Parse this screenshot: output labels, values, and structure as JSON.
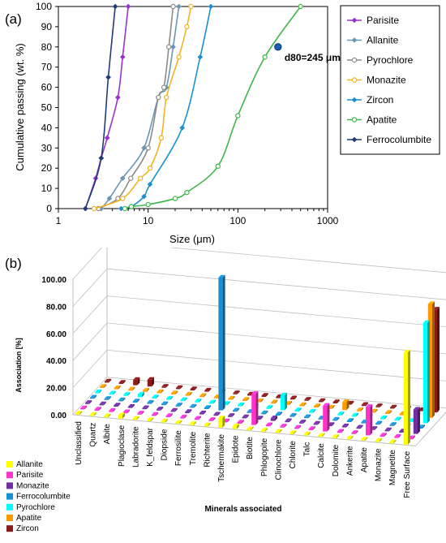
{
  "chart_data": [
    {
      "type": "line",
      "panel_label": "(a)",
      "xlabel": "Size (μm)",
      "ylabel": "Cumulative passing (wt. %)",
      "xscale": "log",
      "xlim": [
        1,
        1000
      ],
      "ylim": [
        0,
        100
      ],
      "x_ticks": [
        "1",
        "10",
        "100",
        "1000"
      ],
      "y_ticks": [
        "0",
        "10",
        "20",
        "30",
        "40",
        "50",
        "60",
        "70",
        "80",
        "90",
        "100"
      ],
      "grid": false,
      "legend": "right",
      "annotation": {
        "text": "d80=245 μm",
        "x": 280,
        "y": 80
      },
      "series": [
        {
          "name": "Parisite",
          "color": "#9933cc",
          "marker": "diamond",
          "points": [
            [
              2.0,
              0
            ],
            [
              2.6,
              15
            ],
            [
              3.0,
              25
            ],
            [
              3.5,
              35
            ],
            [
              4.6,
              55
            ],
            [
              5.2,
              75
            ],
            [
              6.0,
              100
            ]
          ]
        },
        {
          "name": "Allanite",
          "color": "#6a96b6",
          "marker": "diamond",
          "points": [
            [
              3.0,
              0
            ],
            [
              3.7,
              5
            ],
            [
              5.2,
              15
            ],
            [
              9.0,
              30
            ],
            [
              13.0,
              55
            ],
            [
              16.0,
              60
            ],
            [
              19.0,
              80
            ],
            [
              22.0,
              100
            ]
          ]
        },
        {
          "name": "Pyrochlore",
          "color": "#8c8c8c",
          "marker": "circle",
          "points": [
            [
              2.8,
              0
            ],
            [
              4.6,
              5
            ],
            [
              6.4,
              15
            ],
            [
              10.0,
              30
            ],
            [
              13.0,
              55
            ],
            [
              15.0,
              60
            ],
            [
              17.0,
              80
            ],
            [
              19.0,
              100
            ]
          ]
        },
        {
          "name": "Monazite",
          "color": "#f2b321",
          "marker": "circle",
          "points": [
            [
              2.5,
              0
            ],
            [
              5.2,
              5
            ],
            [
              8.2,
              15
            ],
            [
              10.5,
              20
            ],
            [
              14.0,
              35
            ],
            [
              16.0,
              55
            ],
            [
              22.0,
              75
            ],
            [
              27.0,
              90
            ],
            [
              30.0,
              100
            ]
          ]
        },
        {
          "name": "Zircon",
          "color": "#1a8fd1",
          "marker": "diamond",
          "points": [
            [
              5.0,
              0
            ],
            [
              6.5,
              1
            ],
            [
              9.0,
              6
            ],
            [
              10.5,
              12
            ],
            [
              24.0,
              40
            ],
            [
              38.0,
              75
            ],
            [
              50.0,
              100
            ]
          ]
        },
        {
          "name": "Apatite",
          "color": "#3fb54a",
          "marker": "circle",
          "points": [
            [
              5.5,
              0
            ],
            [
              6.5,
              1
            ],
            [
              10.0,
              2
            ],
            [
              20.0,
              5
            ],
            [
              27.0,
              8
            ],
            [
              60.0,
              21
            ],
            [
              100.0,
              46
            ],
            [
              200.0,
              75
            ],
            [
              500.0,
              100
            ]
          ]
        },
        {
          "name": "Ferrocolumbite",
          "color": "#1f3c78",
          "marker": "diamond",
          "points": [
            [
              2.0,
              0
            ],
            [
              3.0,
              25
            ],
            [
              3.6,
              65
            ],
            [
              4.3,
              100
            ]
          ]
        }
      ]
    },
    {
      "type": "bar3d",
      "panel_label": "(b)",
      "ylabel": "Association [%]",
      "xlabel": "Minerals associated",
      "ylim": [
        0,
        100
      ],
      "y_ticks": [
        "0.00",
        "20.00",
        "40.00",
        "60.00",
        "80.00",
        "100.00"
      ],
      "categories": [
        "Unclassified",
        "Quartz",
        "Albite",
        "Plagioclase",
        "Labradorite",
        "K_feldspar",
        "Diopside",
        "Ferrosilite",
        "Tremolite",
        "Richterite",
        "Tschermakite",
        "Epidote",
        "Biotite",
        "Phlogopite",
        "Clinochlore",
        "Chlorite",
        "Talc",
        "Calcite",
        "Dolomite",
        "Ankerite",
        "Apatite",
        "Monazite",
        "Magnetite",
        "Free Surface"
      ],
      "series": [
        {
          "name": "Allanite",
          "color": "#ffff00",
          "values": [
            0.3,
            0.3,
            0.3,
            2.5,
            0.3,
            0.3,
            0.3,
            0.3,
            0.3,
            0.3,
            7.0,
            2.0,
            0.3,
            0.3,
            0.3,
            0.3,
            0.3,
            0.3,
            0.3,
            0.3,
            0.3,
            0.3,
            0.3,
            68.0
          ]
        },
        {
          "name": "Parisite",
          "color": "#ff33cc",
          "values": [
            0.3,
            0.3,
            0.3,
            0.3,
            0.3,
            0.3,
            0.3,
            0.3,
            0.3,
            0.3,
            0.3,
            0.3,
            23.0,
            0.3,
            0.3,
            0.3,
            0.3,
            19.0,
            0.3,
            0.3,
            21.0,
            0.3,
            0.3,
            0.3
          ]
        },
        {
          "name": "Monazite",
          "color": "#7030a0",
          "values": [
            0.3,
            0.3,
            0.3,
            0.3,
            0.3,
            0.3,
            0.3,
            0.3,
            0.3,
            0.3,
            0.3,
            0.3,
            0.3,
            2.0,
            0.3,
            0.3,
            0.3,
            0.3,
            0.3,
            0.3,
            0.3,
            0.3,
            0.3,
            18.0
          ]
        },
        {
          "name": "Ferrocolumbite",
          "color": "#1a8fd1",
          "values": [
            0.3,
            0.3,
            0.3,
            0.3,
            0.3,
            0.3,
            0.3,
            0.3,
            0.3,
            98.0,
            0.3,
            0.3,
            0.3,
            0.3,
            0.3,
            0.3,
            0.3,
            0.3,
            0.3,
            0.3,
            0.3,
            0.3,
            0.3,
            0.3
          ]
        },
        {
          "name": "Pyrochlore",
          "color": "#00ffff",
          "values": [
            0.3,
            0.3,
            0.3,
            2.0,
            0.3,
            0.3,
            0.3,
            0.3,
            0.3,
            0.3,
            0.3,
            0.3,
            0.3,
            11.0,
            0.3,
            0.3,
            0.3,
            0.3,
            0.3,
            0.3,
            0.3,
            0.3,
            0.3,
            74.0
          ]
        },
        {
          "name": "Apatite",
          "color": "#ff9900",
          "values": [
            0.3,
            0.3,
            0.3,
            0.3,
            0.3,
            0.3,
            0.3,
            0.3,
            0.3,
            0.3,
            0.3,
            0.3,
            0.3,
            0.3,
            0.3,
            0.3,
            0.3,
            6.0,
            0.3,
            0.3,
            0.3,
            0.3,
            0.3,
            84.0
          ]
        },
        {
          "name": "Zircon",
          "color": "#8b1a1a",
          "values": [
            0.3,
            0.3,
            4.0,
            5.0,
            0.3,
            0.3,
            0.3,
            0.3,
            0.3,
            0.3,
            0.3,
            0.3,
            0.3,
            0.3,
            0.3,
            0.3,
            0.3,
            0.3,
            0.3,
            0.3,
            0.3,
            0.3,
            0.3,
            76.0
          ]
        }
      ]
    }
  ]
}
